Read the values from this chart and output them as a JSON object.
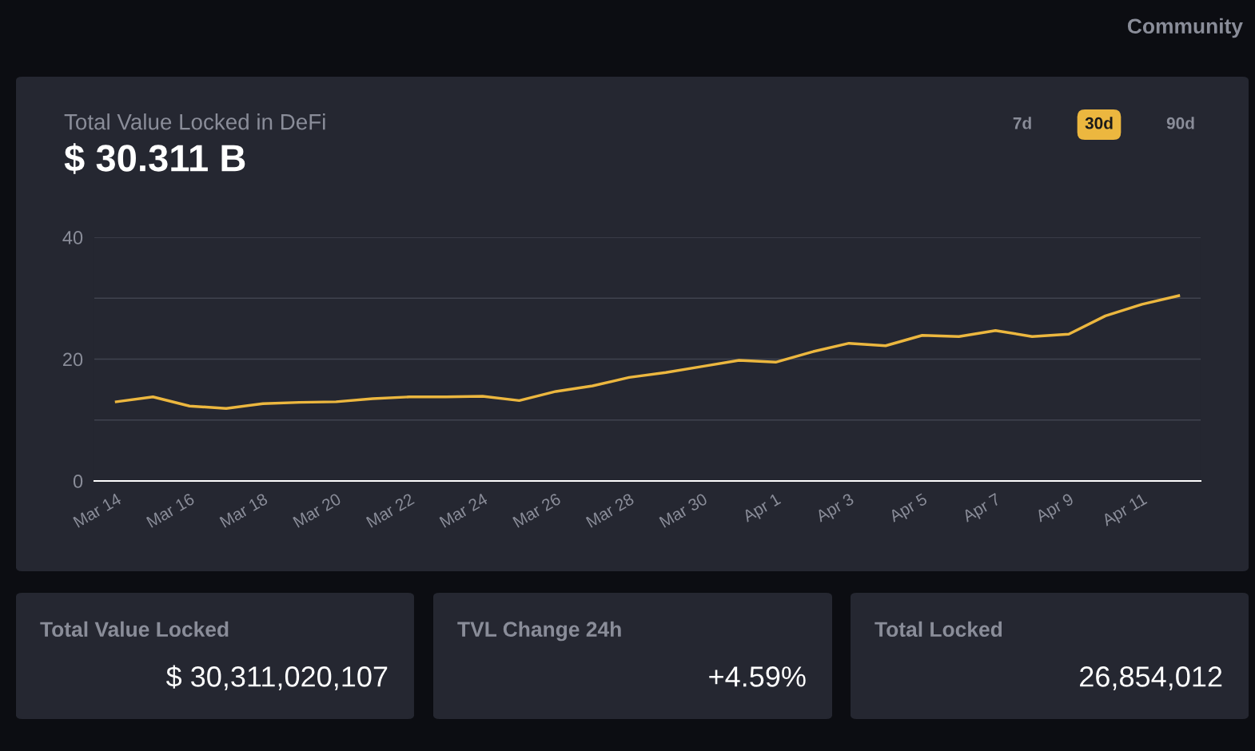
{
  "chart_data": [
    {
      "type": "line",
      "title": "Total Value Locked in DeFi",
      "subtitle": "$ 30.311 B",
      "categories": [
        "Mar 14",
        null,
        "Mar 16",
        null,
        "Mar 18",
        null,
        "Mar 20",
        null,
        "Mar 22",
        null,
        "Mar 24",
        null,
        "Mar 26",
        null,
        "Mar 28",
        null,
        "Mar 30",
        null,
        "Apr 1",
        null,
        "Apr 3",
        null,
        "Apr 5",
        null,
        "Apr 7",
        null,
        "Apr 9",
        null,
        "Apr 11",
        null
      ],
      "series": [
        {
          "color": "#ecb73f",
          "values": [
            13.0,
            13.8,
            12.3,
            11.9,
            12.7,
            12.9,
            13.0,
            13.5,
            13.8,
            13.8,
            13.9,
            13.2,
            14.7,
            15.6,
            17.0,
            17.8,
            18.8,
            19.8,
            19.5,
            21.2,
            22.6,
            22.2,
            23.9,
            23.7,
            24.7,
            23.7,
            24.1,
            27.1,
            29.0,
            30.4
          ]
        }
      ],
      "ylim": [
        0,
        40
      ],
      "yticks": [
        0,
        {
          "value": 10,
          "label": null
        },
        20,
        {
          "value": 30,
          "label": null
        },
        40
      ],
      "grid": "y",
      "marker": "none",
      "line_style": "solid",
      "annotations": [
        "7d",
        "30d",
        "90d",
        "Community"
      ]
    },
    {
      "type": "other",
      "annotations": [
        "Total Value Locked",
        "$ 30,311,020,107",
        "TVL Change 24h",
        "+4.59%",
        "Total Locked",
        "26,854,012"
      ]
    }
  ]
}
